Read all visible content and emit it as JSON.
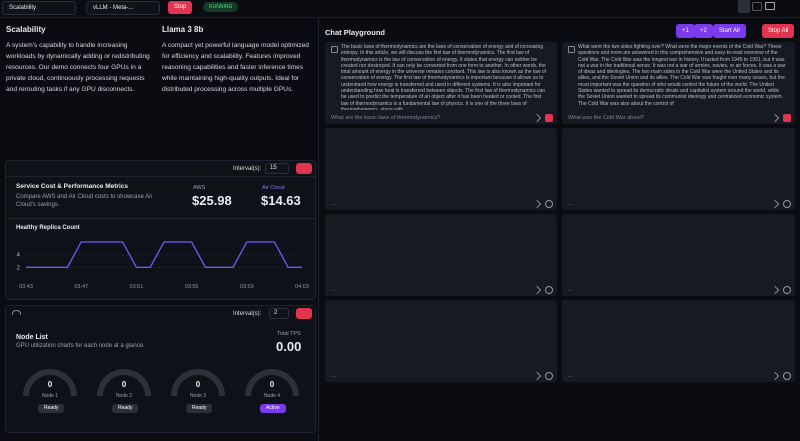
{
  "topbar": {
    "workload": "Scalability",
    "model": "vLLM - Meta-...",
    "stop": "Stop",
    "status": "RUNNING"
  },
  "intro": {
    "title": "Scalability",
    "text": "A system's capability to handle increasing workloads by dynamically adding or redistributing resources. Our demo connects four GPUs in a private cloud, continuously processing requests and rerouting tasks if any GPU disconnects."
  },
  "model": {
    "title": "Llama 3 8b",
    "text": "A compact yet powerful language model optimized for efficiency and scalability. Features improved reasoning capabilities and faster inference times while maintaining high-quality outputs. Ideal for distributed processing across multiple GPUs."
  },
  "metrics": {
    "interval_label": "Interval(s):",
    "interval": "15",
    "title": "Service Cost & Performance Metrics",
    "subtitle": "Compare AWS and Air Cloud costs to showcase Air Cloud's savings.",
    "aws_label": "AWS",
    "aws": "$25.98",
    "air_label": "Air Cloud",
    "air": "$14.63"
  },
  "replica_chart": {
    "type": "line",
    "title": "Healthy Replica Count",
    "color": "#6d5cf6",
    "grid": true,
    "categories": [
      "03:43",
      null,
      null,
      null,
      "03:47",
      null,
      null,
      null,
      "03:51",
      null,
      null,
      null,
      "03:55",
      null,
      null,
      null,
      "03:59",
      null,
      null,
      null,
      "04:03"
    ],
    "values": [
      2,
      2,
      2,
      2,
      6,
      6,
      6,
      6,
      2,
      2,
      6,
      6,
      6,
      2,
      2,
      2,
      6,
      6,
      6,
      2,
      2
    ],
    "ylim": [
      0,
      6
    ],
    "yticks": [
      2,
      4
    ]
  },
  "nodes": {
    "interval_label": "Interval(s):",
    "interval": "2",
    "title": "Node List",
    "subtitle": "GPU utilization charts for each node at a glance.",
    "tps_label": "Total TPS",
    "tps": "0.00",
    "list": [
      {
        "value": 0,
        "name": "Node 1",
        "status": "Ready"
      },
      {
        "value": 0,
        "name": "Node 2",
        "status": "Ready"
      },
      {
        "value": 0,
        "name": "Node 3",
        "status": "Ready"
      },
      {
        "value": 0,
        "name": "Node 4",
        "status": "Active"
      }
    ]
  },
  "chat": {
    "title": "Chat Playground",
    "add1": "+1",
    "add2": "+2",
    "start": "Start All",
    "stop": "Stop All",
    "panels": [
      {
        "text": "The basic laws of thermodynamics are the laws of conservation of energy and of increasing entropy. In this article, we will discuss the first law of thermodynamics. The first law of thermodynamics is the law of conservation of energy. It states that energy can neither be created nor destroyed. It can only be converted from one form to another. In other words, the total amount of energy in the universe remains constant. This law is also known as the law of conservation of energy. The first law of thermodynamics is important because it allows us to understand how energy is transferred and used in different systems. It is also important for understanding how heat is transferred between objects. The first law of thermodynamics can be used to predict the temperature of an object after it has been heated or cooled. The first law of thermodynamics is a fundamental law of physics. It is one of the three laws of thermodynamics, along with",
        "placeholder": "What are the basic laws of thermodynamics?"
      },
      {
        "text": "What were the two sides fighting over? What were the major events of the Cold War? These questions and more are answered in this comprehensive and easy-to-read overview of the Cold War. The Cold War was the longest war in history. It lasted from 1945 to 1991, but it was not a war in the traditional sense. It was not a war of armies, navies, or air forces. It was a war of ideas and ideologies. The two main sides in the Cold War were the United States and its allies, and the Soviet Union and its allies. The Cold War was fought over many issues, but the most important was the question of who would control the future of the world. The United States wanted to spread its democratic ideals and capitalist system around the world, while the Soviet Union wanted to spread its communist ideology and centralized economic system. The Cold War was also about the control of",
        "placeholder": "What was the Cold War about?"
      },
      {
        "placeholder": "..."
      },
      {
        "placeholder": "..."
      },
      {
        "placeholder": "..."
      },
      {
        "placeholder": "..."
      },
      {
        "placeholder": "..."
      },
      {
        "placeholder": "..."
      }
    ]
  }
}
